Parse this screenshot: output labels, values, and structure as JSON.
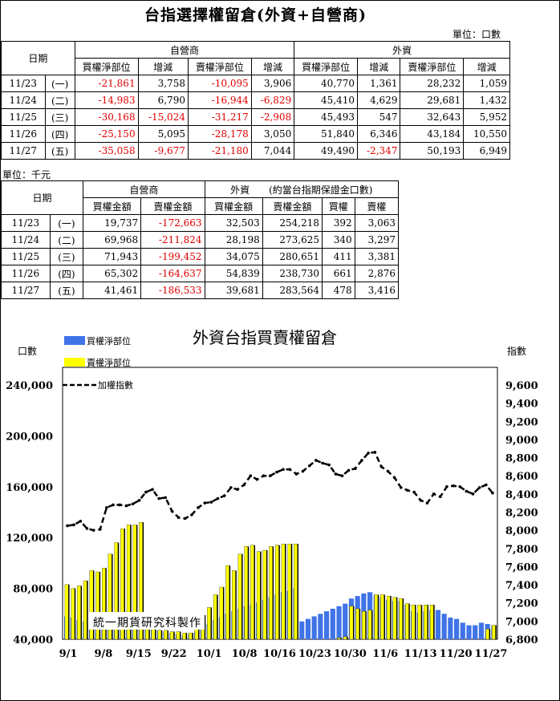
{
  "title": "台指選擇權留倉(外資+自營商)",
  "unit1": "單位：口數",
  "table1": {
    "date_header": "日期",
    "group_dealer": "自營商",
    "group_foreign": "外資",
    "col_headers": [
      "買權淨部位",
      "增減",
      "賣權淨部位",
      "增減",
      "買權淨部位",
      "增減",
      "賣權淨部位",
      "增減"
    ],
    "rows": [
      {
        "date": "11/23",
        "wd": "(一)",
        "v": [
          "-21,861",
          "3,758",
          "-10,095",
          "3,906",
          "40,770",
          "1,361",
          "28,232",
          "1,059"
        ]
      },
      {
        "date": "11/24",
        "wd": "(二)",
        "v": [
          "-14,983",
          "6,790",
          "-16,944",
          "-6,829",
          "45,410",
          "4,629",
          "29,681",
          "1,432"
        ]
      },
      {
        "date": "11/25",
        "wd": "(三)",
        "v": [
          "-30,168",
          "-15,024",
          "-31,217",
          "-2,908",
          "45,493",
          "547",
          "32,643",
          "5,952"
        ]
      },
      {
        "date": "11/26",
        "wd": "(四)",
        "v": [
          "-25,150",
          "5,095",
          "-28,178",
          "3,050",
          "51,840",
          "6,346",
          "43,184",
          "10,550"
        ]
      },
      {
        "date": "11/27",
        "wd": "(五)",
        "v": [
          "-35,058",
          "-9,677",
          "-21,180",
          "7,044",
          "49,490",
          "-2,347",
          "50,193",
          "6,949"
        ]
      }
    ]
  },
  "unit2": "單位：千元",
  "table2": {
    "date_header": "日期",
    "group_dealer": "自營商",
    "group_foreign": "外資　　(約當台指期保證金口數)",
    "col_headers": [
      "買權金額",
      "賣權金額",
      "買權金額",
      "賣權金額",
      "買權",
      "賣權"
    ],
    "rows": [
      {
        "date": "11/23",
        "wd": "(一)",
        "v": [
          "19,737",
          "-172,663",
          "32,503",
          "254,218",
          "392",
          "3,063"
        ]
      },
      {
        "date": "11/24",
        "wd": "(二)",
        "v": [
          "69,968",
          "-211,824",
          "28,198",
          "273,625",
          "340",
          "3,297"
        ]
      },
      {
        "date": "11/25",
        "wd": "(三)",
        "v": [
          "71,943",
          "-199,452",
          "34,075",
          "280,651",
          "411",
          "3,381"
        ]
      },
      {
        "date": "11/26",
        "wd": "(四)",
        "v": [
          "65,302",
          "-164,637",
          "54,839",
          "238,730",
          "661",
          "2,876"
        ]
      },
      {
        "date": "11/27",
        "wd": "(五)",
        "v": [
          "41,461",
          "-186,533",
          "39,681",
          "283,564",
          "478",
          "3,416"
        ]
      }
    ]
  },
  "chart_data": {
    "type": "bar",
    "title": "外資台指買賣權留倉",
    "y_left_label": "口數",
    "y_right_label": "指數",
    "y_left_ticks": [
      "240,000",
      "200,000",
      "160,000",
      "120,000",
      "80,000",
      "40,000"
    ],
    "y_left_range": [
      40000,
      240000
    ],
    "y_right_ticks": [
      "9,600",
      "9,400",
      "9,200",
      "9,000",
      "8,800",
      "8,600",
      "8,400",
      "8,200",
      "8,000",
      "7,800",
      "7,600",
      "7,400",
      "7,200",
      "7,000",
      "6,800"
    ],
    "y_right_range": [
      6800,
      9600
    ],
    "x_ticks": [
      "9/1",
      "9/8",
      "9/15",
      "9/22",
      "10/1",
      "10/8",
      "10/16",
      "10/23",
      "10/30",
      "11/6",
      "11/13",
      "11/20",
      "11/27"
    ],
    "watermark": "統一期貨研究科製作",
    "colors": {
      "call": "#3f73e8",
      "put": "#ffff00",
      "index": "#000000"
    },
    "series": [
      {
        "name": "買權淨部位",
        "type": "bar",
        "values": [
          58000,
          57000,
          55000,
          54000,
          56000,
          57000,
          58000,
          59000,
          60000,
          61000,
          62000,
          61000,
          60000,
          50000,
          48000,
          47000,
          46000,
          45000,
          44000,
          43000,
          44000,
          46000,
          49000,
          52000,
          55000,
          57000,
          60000,
          62000,
          64000,
          66000,
          67000,
          69000,
          71000,
          73000,
          75000,
          77000,
          78000,
          80000,
          54000,
          56000,
          58000,
          60000,
          62000,
          64000,
          66000,
          68000,
          72000,
          74000,
          76000,
          77000,
          75000,
          73000,
          71000,
          70000,
          70000,
          67000,
          62000,
          61000,
          62000,
          63000,
          63000,
          60000,
          57000,
          56000,
          53000,
          51000,
          51000,
          53000,
          52000,
          51000
        ]
      },
      {
        "name": "賣權淨部位",
        "type": "bar",
        "values": [
          83000,
          80000,
          82000,
          86000,
          94000,
          93000,
          96000,
          107000,
          116000,
          127000,
          130000,
          130000,
          132000,
          50000,
          48000,
          47000,
          47000,
          46000,
          46000,
          45000,
          45000,
          50000,
          59000,
          65000,
          75000,
          81000,
          98000,
          94000,
          107000,
          113000,
          114000,
          109000,
          110000,
          113000,
          114000,
          115000,
          115000,
          115000,
          35000,
          36000,
          37000,
          38000,
          39000,
          40000,
          41000,
          42000,
          66000,
          64000,
          62000,
          63000,
          75000,
          75000,
          74000,
          73000,
          72000,
          68000,
          67000,
          67000,
          67000,
          67000,
          30000,
          30000,
          30000,
          30000,
          30000,
          30000,
          30000,
          30000,
          48000,
          51000
        ]
      },
      {
        "name": "加權指數",
        "type": "line",
        "values": [
          8050,
          8060,
          8100,
          8020,
          8000,
          8010,
          8250,
          8280,
          8280,
          8270,
          8290,
          8330,
          8420,
          8450,
          8350,
          8360,
          8210,
          8140,
          8130,
          8170,
          8250,
          8300,
          8310,
          8350,
          8380,
          8470,
          8450,
          8500,
          8600,
          8560,
          8600,
          8600,
          8640,
          8670,
          8670,
          8620,
          8650,
          8710,
          8770,
          8740,
          8720,
          8620,
          8600,
          8660,
          8680,
          8770,
          8850,
          8860,
          8700,
          8650,
          8580,
          8470,
          8440,
          8420,
          8330,
          8300,
          8400,
          8370,
          8480,
          8490,
          8480,
          8430,
          8400,
          8470,
          8500,
          8410
        ]
      }
    ],
    "legend": [
      "買權淨部位",
      "賣權淨部位",
      "加權指數"
    ]
  }
}
